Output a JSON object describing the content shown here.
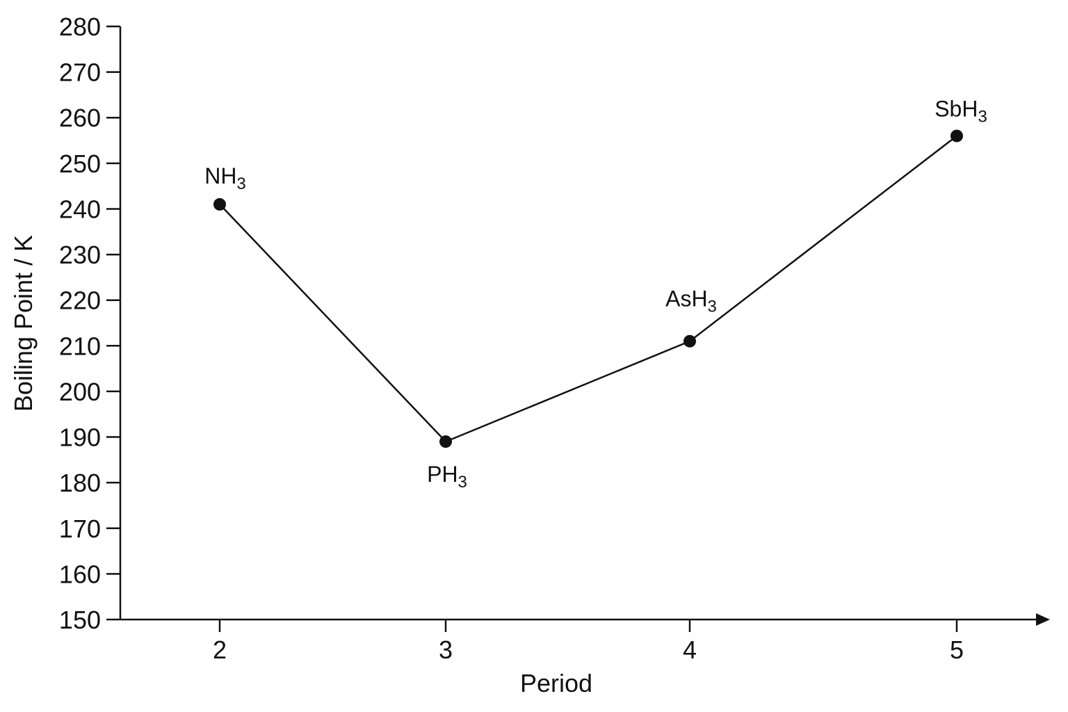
{
  "chart_data": {
    "type": "line",
    "title": "",
    "xlabel": "Period",
    "ylabel": "Boiling Point / K",
    "x": [
      2,
      3,
      4,
      5
    ],
    "x_tick_labels": [
      "2",
      "3",
      "4",
      "5"
    ],
    "ylim": [
      150,
      280
    ],
    "y_ticks": [
      150,
      160,
      170,
      180,
      190,
      200,
      210,
      220,
      230,
      240,
      250,
      260,
      270,
      280
    ],
    "series": [
      {
        "values": [
          241,
          189,
          211,
          256
        ],
        "labels": [
          {
            "main": "NH",
            "sub": "3"
          },
          {
            "main": "PH",
            "sub": "3"
          },
          {
            "main": "AsH",
            "sub": "3"
          },
          {
            "main": "SbH",
            "sub": "3"
          }
        ]
      }
    ],
    "grid": false,
    "colors": {
      "line": "#111111",
      "marker": "#111111"
    }
  }
}
